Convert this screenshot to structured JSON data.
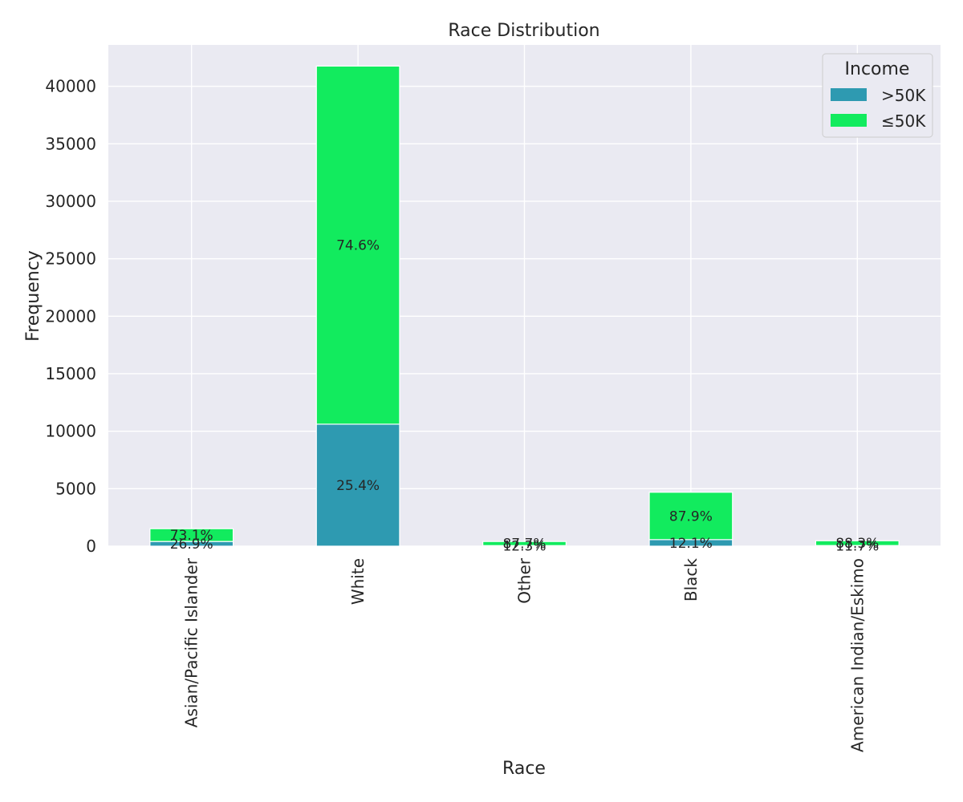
{
  "chart_data": {
    "type": "bar",
    "stacked": true,
    "title": "Race Distribution",
    "xlabel": "Race",
    "ylabel": "Frequency",
    "categories": [
      "Asian/Pacific Islander",
      "White",
      "Other",
      "Black",
      "American Indian/Eskimo"
    ],
    "ylim": [
      0,
      43600
    ],
    "yticks": [
      0,
      5000,
      10000,
      15000,
      20000,
      25000,
      30000,
      35000,
      40000
    ],
    "ytick_labels": [
      "0",
      "5000",
      "10000",
      "15000",
      "20000",
      "25000",
      "30000",
      "35000",
      "40000"
    ],
    "grid": true,
    "legend": {
      "title": "Income",
      "placement": "top-right"
    },
    "series": [
      {
        "name": ">50K",
        "color": "#2e9ab1",
        "values": [
          410,
          10610,
          50,
          570,
          55
        ],
        "labels": [
          "26.9%",
          "25.4%",
          "12.3%",
          "12.1%",
          "11.7%"
        ]
      },
      {
        "name": "≤50K",
        "color": "#12eb5e",
        "values": [
          1110,
          31150,
          355,
          4120,
          415
        ],
        "labels": [
          "73.1%",
          "74.6%",
          "87.7%",
          "87.9%",
          "88.3%"
        ]
      }
    ],
    "colors": {
      "plot_bg": "#eaeaf2",
      "grid": "#ffffff",
      "bar_edge": "#ffffff"
    }
  }
}
